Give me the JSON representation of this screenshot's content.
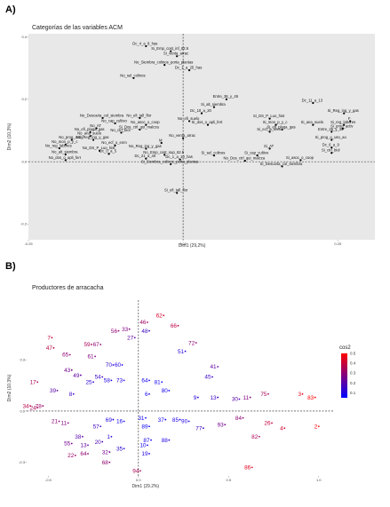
{
  "panels": [
    {
      "panel_label": "A)",
      "chart_data": {
        "type": "scatter",
        "title": "Categorías de las variables ACM",
        "xlabel": "Dim1 (29,2%)",
        "ylabel": "Dim2 (10,3%)",
        "xlim": [
          -0.25,
          0.31
        ],
        "ylim": [
          -0.25,
          0.41
        ],
        "xticks": [
          -0.25,
          0.0,
          0.25
        ],
        "xtick_labels": [
          "-0.25",
          "0.00",
          "0.25"
        ],
        "yticks": [
          -0.2,
          0.0,
          0.2,
          0.4
        ],
        "ytick_labels": [
          "-0.2",
          "0.0",
          "0.2",
          "0.4"
        ],
        "reference_lines": {
          "x": 0,
          "y": 0,
          "style": "dashed"
        },
        "background": "#e8e8e8",
        "point_color": "#000000",
        "points": [
          {
            "label": "Dc_4_a_8_has",
            "x": -0.06,
            "y": 0.37
          },
          {
            "label": "Si_Emp_cost_inf_62.5",
            "x": -0.02,
            "y": 0.354
          },
          {
            "label": "Si_venta_arrac",
            "x": -0.01,
            "y": 0.338
          },
          {
            "label": "No_Siembra_colinos_porta_plantas",
            "x": -0.03,
            "y": 0.31
          },
          {
            "label": "Dc_1_a_25_has",
            "x": 0.01,
            "y": 0.293
          },
          {
            "label": "No_sel_colinos",
            "x": -0.08,
            "y": 0.268
          },
          {
            "label": "Entre_36_y_45",
            "x": 0.07,
            "y": 0.2
          },
          {
            "label": "Si_alt_siembra",
            "x": 0.05,
            "y": 0.175
          },
          {
            "label": "Dc_10_a_20",
            "x": 0.03,
            "y": 0.155
          },
          {
            "label": "Dc_11_a_13",
            "x": 0.21,
            "y": 0.188
          },
          {
            "label": "Si_Reg_ing_y_gas",
            "x": 0.26,
            "y": 0.155
          },
          {
            "label": "F",
            "x": 0.27,
            "y": 0.13
          },
          {
            "label": "Si_reg_labores",
            "x": 0.26,
            "y": 0.118
          },
          {
            "label": "Si_prog_activ",
            "x": 0.258,
            "y": 0.106
          },
          {
            "label": "Entre_25_y_35",
            "x": 0.24,
            "y": 0.096
          },
          {
            "label": "Si_ana_suelo",
            "x": 0.21,
            "y": 0.118
          },
          {
            "label": "No_Descarta_col_siembra",
            "x": -0.13,
            "y": 0.14
          },
          {
            "label": "No_cap_cultivo",
            "x": -0.11,
            "y": 0.123
          },
          {
            "label": "No_AT",
            "x": -0.14,
            "y": 0.107
          },
          {
            "label": "No_efi_plaga_gas",
            "x": -0.15,
            "y": 0.095
          },
          {
            "label": "No_prog_activ",
            "x": -0.18,
            "y": 0.07
          },
          {
            "label": "No_mon_p_y_c",
            "x": -0.19,
            "y": 0.055
          },
          {
            "label": "No_reg_labores",
            "x": -0.2,
            "y": 0.043
          },
          {
            "label": "No_alt_siembra",
            "x": -0.19,
            "y": 0.023
          },
          {
            "label": "No_dos_o_apli_fert",
            "x": -0.19,
            "y": 0.005
          },
          {
            "label": "No_efi_tall_flor",
            "x": -0.07,
            "y": 0.14
          },
          {
            "label": "No_asoc_o_coop",
            "x": -0.06,
            "y": 0.118
          },
          {
            "label": "Si_Dos_ctrl_qui_malcza",
            "x": -0.07,
            "y": 0.103
          },
          {
            "label": "No_ctrl_biol",
            "x": -0.1,
            "y": 0.093
          },
          {
            "label": "No_ana_suelo",
            "x": -0.15,
            "y": 0.082
          },
          {
            "label": "No_Reg_ing_y_gas",
            "x": -0.145,
            "y": 0.07
          },
          {
            "label": "No_ecf_o_enm",
            "x": -0.11,
            "y": 0.052
          },
          {
            "label": "No_DS_P_Luo_hist",
            "x": -0.135,
            "y": 0.035
          },
          {
            "label": "M",
            "x": -0.035,
            "y": 0.06
          },
          {
            "label": "No_Reg_ing_y_gas_2",
            "x": -0.06,
            "y": 0.042
          },
          {
            "label": "No_venta_arrac",
            "x": 0.0,
            "y": 0.075
          },
          {
            "label": "No_Emp_cost_sup_62.5",
            "x": -0.03,
            "y": 0.022
          },
          {
            "label": "Dc_0_a_5",
            "x": -0.12,
            "y": 0.025
          },
          {
            "label": "Dc_21_a_40",
            "x": -0.06,
            "y": 0.01
          },
          {
            "label": "Dc_1_a_10_has",
            "x": -0.005,
            "y": 0.007
          },
          {
            "label": "Si_sel_colinos",
            "x": 0.05,
            "y": 0.02
          },
          {
            "label": "Si_Siembra_colinos_porta_plantas",
            "x": -0.02,
            "y": -0.008
          },
          {
            "label": "No_efi_suelo",
            "x": 0.01,
            "y": 0.13
          },
          {
            "label": "Si_dos_o_apli_fert",
            "x": 0.04,
            "y": 0.118
          },
          {
            "label": "Si_DS_P_Luo_hist",
            "x": 0.14,
            "y": 0.138
          },
          {
            "label": "Si_mon_p_y_c",
            "x": 0.15,
            "y": 0.118
          },
          {
            "label": "Si_efi_plaga_gas",
            "x": 0.16,
            "y": 0.103
          },
          {
            "label": "Si_AT",
            "x": 0.14,
            "y": 0.042
          },
          {
            "label": "Si_cap_cultivo",
            "x": 0.12,
            "y": 0.02
          },
          {
            "label": "No_Dos_ctrl_qui_malcza",
            "x": 0.1,
            "y": 0.003
          },
          {
            "label": "Si_asoc_o_coop",
            "x": 0.19,
            "y": 0.005
          },
          {
            "label": "Si_Descarta_col_siembra",
            "x": 0.16,
            "y": -0.015
          },
          {
            "label": "Si_prog_o_uso_ao",
            "x": 0.24,
            "y": 0.07
          },
          {
            "label": "Dc_6_a_9",
            "x": 0.24,
            "y": 0.045
          },
          {
            "label": "Si_ctrl_biol",
            "x": 0.24,
            "y": 0.028
          },
          {
            "label": "Si_efi_tall_flor",
            "x": -0.01,
            "y": -0.1
          },
          {
            "label": "Si_ecf_o_enm",
            "x": 0.14,
            "y": 0.096
          }
        ]
      }
    },
    {
      "panel_label": "B)",
      "chart_data": {
        "type": "scatter",
        "title": "Productores de arracacha",
        "xlabel": "Dim1 (29.2%)",
        "ylabel": "Dim2 (10.3%)",
        "xlim": [
          -0.62,
          1.08
        ],
        "ylim": [
          -0.38,
          0.65
        ],
        "xticks": [
          -0.5,
          0.0,
          0.5,
          1.0
        ],
        "xtick_labels": [
          "-0.5",
          "0.0",
          "0.5",
          "1.0"
        ],
        "yticks": [
          -0.3,
          0.0,
          0.3
        ],
        "ytick_labels": [
          "-0.3",
          "0.0",
          "0.3"
        ],
        "reference_lines": {
          "x": 0,
          "y": 0,
          "style": "dashed"
        },
        "background": "#ffffff",
        "color_variable": "cos2",
        "color_scale": {
          "low": "#0000ff",
          "high": "#ff0000",
          "min": 0.05,
          "max": 0.5
        },
        "legend": {
          "title": "cos2",
          "ticks": [
            0.5,
            0.4,
            0.3,
            0.2,
            0.1
          ],
          "position": "right"
        },
        "points": [
          {
            "label": "62",
            "x": 0.14,
            "y": 0.56,
            "cos2": 0.42
          },
          {
            "label": "66",
            "x": 0.22,
            "y": 0.5,
            "cos2": 0.38
          },
          {
            "label": "46",
            "x": 0.05,
            "y": 0.52,
            "cos2": 0.33
          },
          {
            "label": "56",
            "x": -0.11,
            "y": 0.47,
            "cos2": 0.3
          },
          {
            "label": "33",
            "x": -0.05,
            "y": 0.48,
            "cos2": 0.28
          },
          {
            "label": "48",
            "x": 0.06,
            "y": 0.47,
            "cos2": 0.15
          },
          {
            "label": "27",
            "x": -0.02,
            "y": 0.43,
            "cos2": 0.22
          },
          {
            "label": "72",
            "x": 0.32,
            "y": 0.4,
            "cos2": 0.3
          },
          {
            "label": "51",
            "x": 0.26,
            "y": 0.35,
            "cos2": 0.12
          },
          {
            "label": "7",
            "x": -0.48,
            "y": 0.43,
            "cos2": 0.4
          },
          {
            "label": "47",
            "x": -0.47,
            "y": 0.37,
            "cos2": 0.38
          },
          {
            "label": "59",
            "x": -0.26,
            "y": 0.39,
            "cos2": 0.35
          },
          {
            "label": "67",
            "x": -0.21,
            "y": 0.39,
            "cos2": 0.3
          },
          {
            "label": "61",
            "x": -0.24,
            "y": 0.32,
            "cos2": 0.28
          },
          {
            "label": "65",
            "x": -0.38,
            "y": 0.33,
            "cos2": 0.3
          },
          {
            "label": "70",
            "x": -0.14,
            "y": 0.27,
            "cos2": 0.12
          },
          {
            "label": "60",
            "x": -0.09,
            "y": 0.27,
            "cos2": 0.1
          },
          {
            "label": "41",
            "x": 0.44,
            "y": 0.26,
            "cos2": 0.22
          },
          {
            "label": "45",
            "x": 0.41,
            "y": 0.2,
            "cos2": 0.15
          },
          {
            "label": "43",
            "x": -0.37,
            "y": 0.24,
            "cos2": 0.25
          },
          {
            "label": "49",
            "x": -0.32,
            "y": 0.21,
            "cos2": 0.22
          },
          {
            "label": "17",
            "x": -0.56,
            "y": 0.17,
            "cos2": 0.35
          },
          {
            "label": "54",
            "x": -0.2,
            "y": 0.2,
            "cos2": 0.15
          },
          {
            "label": "25",
            "x": -0.25,
            "y": 0.17,
            "cos2": 0.12
          },
          {
            "label": "58",
            "x": -0.15,
            "y": 0.18,
            "cos2": 0.1
          },
          {
            "label": "73",
            "x": -0.08,
            "y": 0.18,
            "cos2": 0.1
          },
          {
            "label": "64",
            "x": 0.06,
            "y": 0.18,
            "cos2": 0.08
          },
          {
            "label": "81",
            "x": 0.13,
            "y": 0.17,
            "cos2": 0.08
          },
          {
            "label": "39",
            "x": -0.45,
            "y": 0.12,
            "cos2": 0.2
          },
          {
            "label": "8",
            "x": -0.36,
            "y": 0.1,
            "cos2": 0.15
          },
          {
            "label": "6",
            "x": 0.06,
            "y": 0.1,
            "cos2": 0.08
          },
          {
            "label": "80",
            "x": 0.17,
            "y": 0.12,
            "cos2": 0.08
          },
          {
            "label": "3",
            "x": 0.91,
            "y": 0.1,
            "cos2": 0.45
          },
          {
            "label": "83",
            "x": 0.98,
            "y": 0.08,
            "cos2": 0.5
          },
          {
            "label": "75",
            "x": 0.72,
            "y": 0.1,
            "cos2": 0.35
          },
          {
            "label": "11",
            "x": 0.62,
            "y": 0.08,
            "cos2": 0.28
          },
          {
            "label": "13",
            "x": 0.44,
            "y": 0.08,
            "cos2": 0.15
          },
          {
            "label": "9",
            "x": 0.33,
            "y": 0.08,
            "cos2": 0.12
          },
          {
            "label": "30",
            "x": 0.56,
            "y": 0.07,
            "cos2": 0.2
          },
          {
            "label": "34",
            "x": -0.6,
            "y": 0.03,
            "cos2": 0.38
          },
          {
            "label": "24",
            "x": -0.56,
            "y": 0.02,
            "cos2": 0.35
          },
          {
            "label": "78",
            "x": -0.53,
            "y": 0.03,
            "cos2": 0.32
          },
          {
            "label": "21",
            "x": -0.44,
            "y": -0.06,
            "cos2": 0.3
          },
          {
            "label": "11b",
            "x": -0.39,
            "y": -0.07,
            "cos2": 0.28
          },
          {
            "label": "84",
            "x": 0.58,
            "y": -0.04,
            "cos2": 0.3
          },
          {
            "label": "93",
            "x": 0.48,
            "y": -0.08,
            "cos2": 0.25
          },
          {
            "label": "26",
            "x": 0.74,
            "y": -0.07,
            "cos2": 0.4
          },
          {
            "label": "4",
            "x": 0.81,
            "y": -0.1,
            "cos2": 0.42
          },
          {
            "label": "82",
            "x": 0.67,
            "y": -0.15,
            "cos2": 0.35
          },
          {
            "label": "2",
            "x": 1.0,
            "y": -0.09,
            "cos2": 0.5
          },
          {
            "label": "77",
            "x": 0.36,
            "y": -0.1,
            "cos2": 0.15
          },
          {
            "label": "85",
            "x": 0.23,
            "y": -0.05,
            "cos2": 0.1
          },
          {
            "label": "90",
            "x": 0.28,
            "y": -0.06,
            "cos2": 0.1
          },
          {
            "label": "37",
            "x": 0.15,
            "y": -0.05,
            "cos2": 0.08
          },
          {
            "label": "31",
            "x": 0.04,
            "y": -0.04,
            "cos2": 0.07
          },
          {
            "label": "89",
            "x": 0.06,
            "y": -0.09,
            "cos2": 0.07
          },
          {
            "label": "16",
            "x": -0.08,
            "y": -0.06,
            "cos2": 0.08
          },
          {
            "label": "69",
            "x": -0.14,
            "y": -0.05,
            "cos2": 0.1
          },
          {
            "label": "57",
            "x": -0.21,
            "y": -0.09,
            "cos2": 0.15
          },
          {
            "label": "38",
            "x": -0.31,
            "y": -0.15,
            "cos2": 0.2
          },
          {
            "label": "55",
            "x": -0.37,
            "y": -0.19,
            "cos2": 0.25
          },
          {
            "label": "13b",
            "x": -0.28,
            "y": -0.2,
            "cos2": 0.22
          },
          {
            "label": "20",
            "x": -0.2,
            "y": -0.18,
            "cos2": 0.18
          },
          {
            "label": "1",
            "x": -0.15,
            "y": -0.15,
            "cos2": 0.12
          },
          {
            "label": "32",
            "x": -0.16,
            "y": -0.24,
            "cos2": 0.25
          },
          {
            "label": "35",
            "x": -0.08,
            "y": -0.22,
            "cos2": 0.12
          },
          {
            "label": "19",
            "x": 0.06,
            "y": -0.25,
            "cos2": 0.1
          },
          {
            "label": "68",
            "x": -0.16,
            "y": -0.3,
            "cos2": 0.3
          },
          {
            "label": "10",
            "x": 0.05,
            "y": -0.2,
            "cos2": 0.08
          },
          {
            "label": "87",
            "x": 0.07,
            "y": -0.17,
            "cos2": 0.08
          },
          {
            "label": "88",
            "x": 0.17,
            "y": -0.17,
            "cos2": 0.1
          },
          {
            "label": "64b",
            "x": -0.28,
            "y": -0.25,
            "cos2": 0.3
          },
          {
            "label": "22",
            "x": -0.35,
            "y": -0.26,
            "cos2": 0.32
          },
          {
            "label": "86",
            "x": 0.63,
            "y": -0.33,
            "cos2": 0.45
          },
          {
            "label": "94",
            "x": 0.01,
            "y": -0.35,
            "cos2": 0.35
          }
        ]
      }
    }
  ]
}
